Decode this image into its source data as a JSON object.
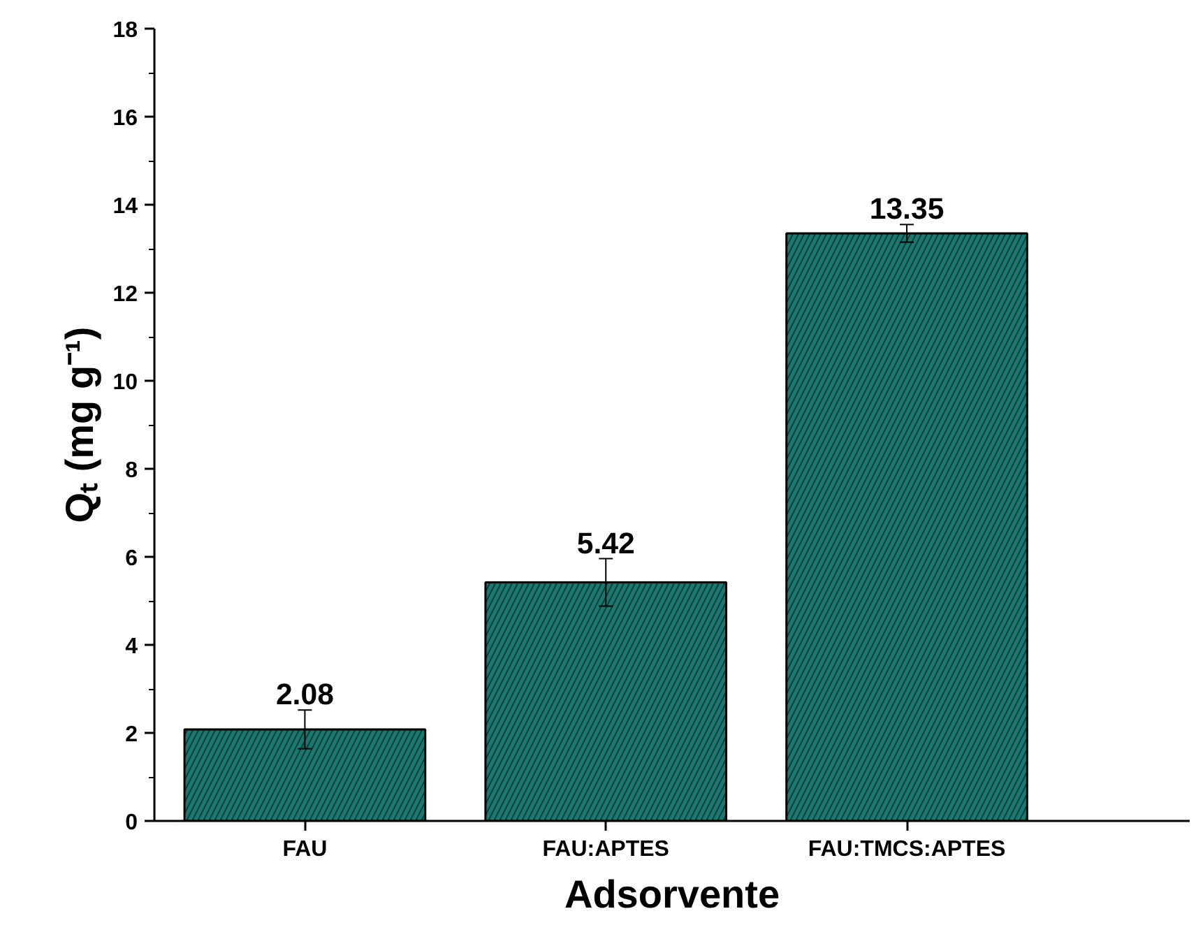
{
  "chart_data": {
    "type": "bar",
    "xlabel": "Adsorvente",
    "ylabel": "Qₜ (mg g⁻¹)",
    "categories": [
      "FAU",
      "FAU:APTES",
      "FAU:TMCS:APTES"
    ],
    "values": [
      2.08,
      5.42,
      13.35
    ],
    "errors": [
      0.44,
      0.54,
      0.2
    ],
    "color": "#177a70",
    "data_labels": true,
    "ylim": [
      0,
      18
    ],
    "yticks": [
      0,
      2,
      4,
      6,
      8,
      10,
      12,
      14,
      16,
      18
    ],
    "grid": false
  }
}
